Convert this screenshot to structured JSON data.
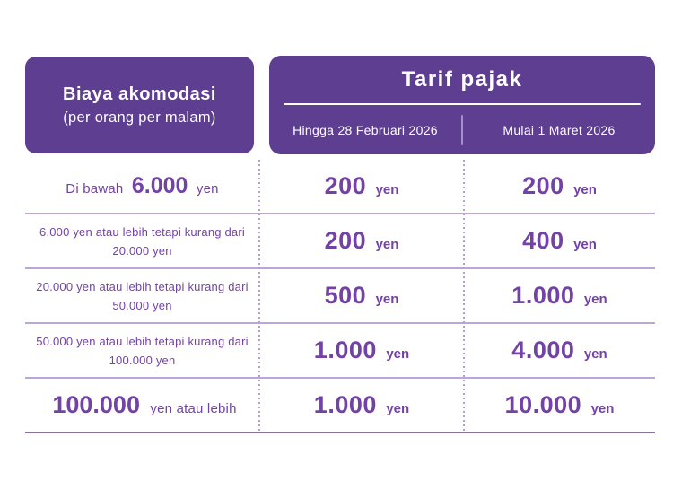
{
  "colors": {
    "header_bg": "#5e3e90",
    "header_text": "#ffffff",
    "body_text": "#7342a6",
    "row_line": "#bca6d8",
    "bottom_line": "#8a6cb8",
    "dotted_line": "#b49fd2",
    "header_divider": "#a690cb",
    "background": "#ffffff"
  },
  "header_left": {
    "title": "Biaya akomodasi",
    "subtitle": "(per orang per malam)"
  },
  "header_right": {
    "title": "Tarif pajak",
    "col_until": "Hingga 28 Februari 2026",
    "col_from": "Mulai 1 Maret 2026"
  },
  "table": {
    "rows": [
      {
        "label": {
          "prefix": "Di bawah",
          "big": "6.000",
          "suffix": "yen"
        },
        "until": {
          "amount": "200",
          "unit": "yen"
        },
        "from": {
          "amount": "200",
          "unit": "yen"
        }
      },
      {
        "label": {
          "line1": "6.000 yen atau lebih tetapi kurang dari",
          "line2": "20.000 yen"
        },
        "until": {
          "amount": "200",
          "unit": "yen"
        },
        "from": {
          "amount": "400",
          "unit": "yen"
        }
      },
      {
        "label": {
          "line1": "20.000 yen atau lebih tetapi kurang dari",
          "line2": "50.000 yen"
        },
        "until": {
          "amount": "500",
          "unit": "yen"
        },
        "from": {
          "amount": "1.000",
          "unit": "yen"
        }
      },
      {
        "label": {
          "line1": "50.000 yen atau lebih tetapi kurang dari",
          "line2": "100.000 yen"
        },
        "until": {
          "amount": "1.000",
          "unit": "yen"
        },
        "from": {
          "amount": "4.000",
          "unit": "yen"
        }
      },
      {
        "label": {
          "big": "100.000",
          "suffix": "yen atau lebih"
        },
        "until": {
          "amount": "1.000",
          "unit": "yen"
        },
        "from": {
          "amount": "10.000",
          "unit": "yen"
        }
      }
    ]
  },
  "chart_data": {
    "type": "table",
    "title": "Tarif pajak",
    "columns": [
      "Biaya akomodasi (per orang per malam)",
      "Hingga 28 Februari 2026",
      "Mulai 1 Maret 2026"
    ],
    "rows": [
      [
        "Di bawah 6.000 yen",
        "200 yen",
        "200 yen"
      ],
      [
        "6.000 yen atau lebih tetapi kurang dari 20.000 yen",
        "200 yen",
        "400 yen"
      ],
      [
        "20.000 yen atau lebih tetapi kurang dari 50.000 yen",
        "500 yen",
        "1.000 yen"
      ],
      [
        "50.000 yen atau lebih tetapi kurang dari 100.000 yen",
        "1.000 yen",
        "4.000 yen"
      ],
      [
        "100.000 yen atau lebih",
        "1.000 yen",
        "10.000 yen"
      ]
    ]
  }
}
